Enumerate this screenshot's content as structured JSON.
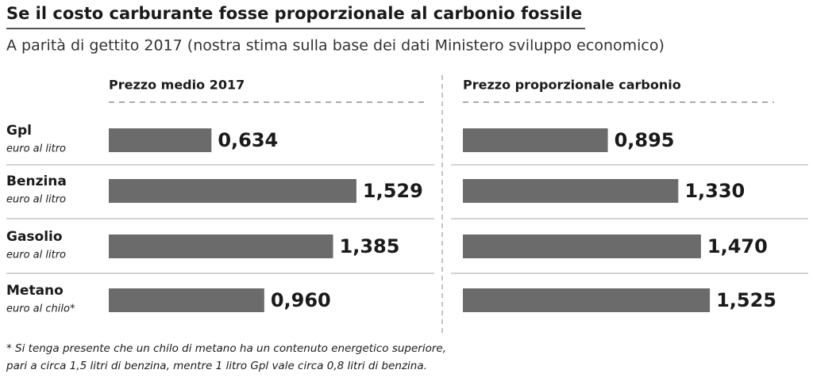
{
  "chart_data": {
    "type": "bar",
    "title": "Se il costo carburante fosse proporzionale al carbonio fossile",
    "subtitle": "A parità di gettito 2017 (nostra stima sulla base dei dati Ministero sviluppo economico)",
    "categories": [
      "Gpl",
      "Benzina",
      "Gasolio",
      "Metano"
    ],
    "category_notes": [
      "euro al litro",
      "euro al litro",
      "euro al litro",
      "euro al chilo*"
    ],
    "series": [
      {
        "name": "Prezzo medio 2017",
        "color": "#6b6b6b",
        "values": [
          0.634,
          1.529,
          1.385,
          0.96
        ],
        "value_labels": [
          "0,634",
          "1,529",
          "1,385",
          "0,960"
        ]
      },
      {
        "name": "Prezzo proporzionale carbonio",
        "color": "#6b6b6b",
        "values": [
          0.895,
          1.33,
          1.47,
          1.525
        ],
        "value_labels": [
          "0,895",
          "1,330",
          "1,470",
          "1,525"
        ]
      }
    ],
    "footnote": [
      "* Si tenga presente che un chilo di metano ha un contenuto energetico superiore,",
      "pari a circa 1,5 litri di benzina, mentre 1 litro Gpl vale circa 0,8 litri di benzina."
    ]
  }
}
